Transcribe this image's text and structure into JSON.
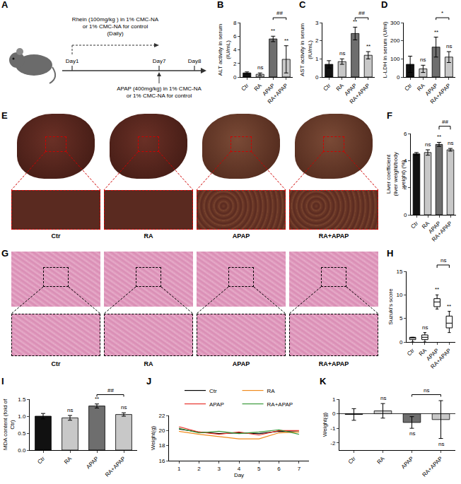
{
  "schematic": {
    "panel": "A",
    "days": [
      "Day1",
      "Day7",
      "Day8"
    ],
    "pretreatment": [
      "Rhein (100mg/kg ) in 1% CMC-NA",
      "or 1% CMC-NA for control",
      "(Daily)"
    ],
    "challenge": [
      "APAP (400mg/kg) in 1% CMC-NA",
      "or 1% CMC-NA for control"
    ]
  },
  "photo_panels": [
    {
      "panel": "E",
      "labels": [
        "Ctr",
        "RA",
        "APAP",
        "RA+APAP"
      ]
    },
    {
      "panel": "G",
      "labels": [
        "Ctr",
        "RA",
        "APAP",
        "RA+APAP"
      ]
    }
  ],
  "chart_data": [
    {
      "panel": "B",
      "type": "bar",
      "categories": [
        "Ctr",
        "RA",
        "APAP",
        "RA+APAP"
      ],
      "values": [
        0.6,
        0.4,
        5.6,
        2.6
      ],
      "errors": [
        0.15,
        0.2,
        0.4,
        2.0
      ],
      "colors": [
        "#111111",
        "#c8c8c8",
        "#6e6e6e",
        "#c8c8c8"
      ],
      "y_label": "ALT activity in serum (IU/mL)",
      "ylim": [
        0,
        8
      ],
      "yticks": [
        0,
        2,
        4,
        6,
        8
      ],
      "grid": false,
      "significance": [
        null,
        "ns",
        "**",
        "**"
      ],
      "comparison": {
        "between": [
          "APAP",
          "RA+APAP"
        ],
        "text": "##"
      }
    },
    {
      "panel": "C",
      "type": "bar",
      "categories": [
        "Ctr",
        "RA",
        "APAP",
        "RA+APAP"
      ],
      "values": [
        0.7,
        0.85,
        2.4,
        1.2
      ],
      "errors": [
        0.2,
        0.15,
        0.35,
        0.2
      ],
      "colors": [
        "#111111",
        "#c8c8c8",
        "#6e6e6e",
        "#c8c8c8"
      ],
      "y_label": "AST activity in serum (IU/mL)",
      "ylim": [
        0,
        3
      ],
      "yticks": [
        0,
        1,
        2,
        3
      ],
      "grid": false,
      "significance": [
        null,
        "ns",
        "**",
        "**"
      ],
      "comparison": {
        "between": [
          "APAP",
          "RA+APAP"
        ],
        "text": "##"
      }
    },
    {
      "panel": "D",
      "type": "bar",
      "categories": [
        "Ctr",
        "RA",
        "APAP",
        "RA+APAP"
      ],
      "values": [
        70,
        45,
        165,
        110
      ],
      "errors": [
        45,
        20,
        55,
        30
      ],
      "colors": [
        "#111111",
        "#c8c8c8",
        "#6e6e6e",
        "#c8c8c8"
      ],
      "y_label": "L-LDH in serum (U/ml)",
      "ylim": [
        0,
        300
      ],
      "yticks": [
        0,
        100,
        200,
        300
      ],
      "grid": false,
      "significance": [
        null,
        "ns",
        "**",
        "ns"
      ],
      "comparison": {
        "between": [
          "APAP",
          "RA+APAP"
        ],
        "text": "*"
      }
    },
    {
      "panel": "F",
      "type": "bar",
      "categories": [
        "Ctr",
        "RA",
        "APAP",
        "RA+APAP"
      ],
      "values": [
        4.5,
        4.6,
        5.2,
        4.8
      ],
      "errors": [
        0.1,
        0.2,
        0.15,
        0.1
      ],
      "colors": [
        "#111111",
        "#c8c8c8",
        "#6e6e6e",
        "#c8c8c8"
      ],
      "y_label": "Liver coefficient (liver weight/body weight) (%)",
      "ylim": [
        0,
        6
      ],
      "yticks": [
        0,
        2,
        4,
        6
      ],
      "grid": false,
      "significance": [
        null,
        "ns",
        "**",
        "ns"
      ],
      "comparison": {
        "between": [
          "APAP",
          "RA+APAP"
        ],
        "text": "##"
      }
    },
    {
      "panel": "H",
      "type": "box",
      "categories": [
        "Ctr",
        "RA",
        "APAP",
        "RA+APAP"
      ],
      "lower": [
        0,
        0,
        7,
        2
      ],
      "q1": [
        0.5,
        0.5,
        7.5,
        3
      ],
      "median": [
        1,
        1,
        8.5,
        4
      ],
      "q3": [
        1,
        1.5,
        9.2,
        5.5
      ],
      "upper": [
        1,
        2,
        10,
        6.5
      ],
      "y_label": "Suzuki's score",
      "ylim": [
        0,
        15
      ],
      "yticks": [
        0,
        5,
        10,
        15
      ],
      "grid": false,
      "significance": [
        null,
        "ns",
        "**",
        "**"
      ],
      "comparison": {
        "between": [
          "APAP",
          "RA+APAP"
        ],
        "text": "ns"
      }
    },
    {
      "panel": "I",
      "type": "bar",
      "categories": [
        "Ctr",
        "RA",
        "APAP",
        "RA+APAP"
      ],
      "values": [
        1.0,
        0.95,
        1.3,
        1.05
      ],
      "errors": [
        0.08,
        0.07,
        0.06,
        0.05
      ],
      "colors": [
        "#111111",
        "#c8c8c8",
        "#6e6e6e",
        "#c8c8c8"
      ],
      "y_label": "MDA content (fold of Ctr)",
      "ylim": [
        0,
        1.5
      ],
      "yticks": [
        {
          "value": 0,
          "label": "0.0"
        },
        0.5,
        {
          "value": 1,
          "label": "1.0"
        },
        1.5
      ],
      "grid": false,
      "significance": [
        null,
        "ns",
        "**",
        "ns"
      ],
      "comparison": {
        "between": [
          "APAP",
          "RA+APAP"
        ],
        "text": "##"
      }
    },
    {
      "panel": "J",
      "type": "line",
      "x": [
        1,
        2,
        3,
        4,
        5,
        6,
        7
      ],
      "series": [
        {
          "name": "Ctr",
          "color": "#000000",
          "values": [
            20.2,
            19.8,
            19.6,
            19.7,
            19.6,
            19.9,
            19.8
          ]
        },
        {
          "name": "RA",
          "color": "#f08a1c",
          "values": [
            19.9,
            19.5,
            19.2,
            18.9,
            18.9,
            19.7,
            19.8
          ]
        },
        {
          "name": "APAP",
          "color": "#e8322b",
          "values": [
            20.5,
            19.8,
            19.5,
            19.8,
            19.4,
            20.0,
            20.0
          ]
        },
        {
          "name": "RA+APAP",
          "color": "#3a9a3a",
          "values": [
            20.3,
            19.7,
            19.9,
            19.6,
            19.8,
            20.1,
            19.5
          ]
        }
      ],
      "x_label": "Day",
      "y_label": "Weight(g)",
      "xlim": [
        0.5,
        7.5
      ],
      "xticks": [
        1,
        2,
        3,
        4,
        5,
        6,
        7
      ],
      "ylim": [
        16,
        22
      ],
      "yticks": [
        16,
        18,
        20,
        22
      ],
      "grid": false,
      "legend": "top"
    },
    {
      "panel": "K",
      "type": "bar",
      "categories": [
        "Ctr",
        "RA",
        "APAP",
        "RA+APAP"
      ],
      "values": [
        -0.05,
        0.2,
        -0.6,
        -0.4
      ],
      "errors": [
        0.4,
        0.5,
        0.4,
        1.3
      ],
      "colors": [
        "#111111",
        "#c8c8c8",
        "#6e6e6e",
        "#c8c8c8"
      ],
      "y_label": "Weight(g)",
      "ylim": [
        -2.5,
        1
      ],
      "yticks": [
        -2,
        -1,
        0,
        1
      ],
      "grid": false,
      "significance": [
        null,
        "ns",
        "ns",
        "ns"
      ],
      "comparison": {
        "between": [
          "APAP",
          "RA+APAP"
        ],
        "text": "ns"
      }
    }
  ]
}
